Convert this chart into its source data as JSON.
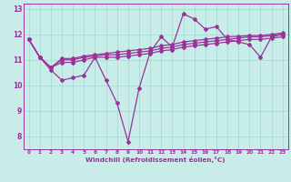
{
  "xlabel": "Windchill (Refroidissement éolien,°C)",
  "xlim": [
    -0.5,
    23.5
  ],
  "ylim": [
    7.5,
    13.2
  ],
  "yticks": [
    8,
    9,
    10,
    11,
    12,
    13
  ],
  "xticks": [
    0,
    1,
    2,
    3,
    4,
    5,
    6,
    7,
    8,
    9,
    10,
    11,
    12,
    13,
    14,
    15,
    16,
    17,
    18,
    19,
    20,
    21,
    22,
    23
  ],
  "bg_color": "#c8ede8",
  "grid_color": "#a0d8d0",
  "line_color": "#993399",
  "line_main": [
    11.8,
    11.1,
    10.6,
    10.2,
    10.3,
    10.4,
    11.1,
    10.2,
    9.3,
    7.8,
    9.9,
    11.3,
    11.9,
    11.5,
    12.8,
    12.6,
    12.2,
    12.3,
    11.8,
    11.7,
    11.6,
    11.1,
    11.9,
    12.0
  ],
  "line_flat1": [
    11.8,
    11.1,
    10.7,
    10.9,
    10.9,
    11.0,
    11.1,
    11.1,
    11.1,
    11.15,
    11.2,
    11.25,
    11.35,
    11.4,
    11.5,
    11.55,
    11.6,
    11.65,
    11.7,
    11.75,
    11.8,
    11.8,
    11.85,
    11.9
  ],
  "line_flat2": [
    11.8,
    11.1,
    10.7,
    11.0,
    11.0,
    11.1,
    11.15,
    11.2,
    11.2,
    11.25,
    11.3,
    11.35,
    11.45,
    11.5,
    11.6,
    11.65,
    11.7,
    11.75,
    11.8,
    11.85,
    11.9,
    11.9,
    11.95,
    12.0
  ],
  "line_flat3": [
    11.8,
    11.1,
    10.7,
    11.05,
    11.05,
    11.15,
    11.2,
    11.25,
    11.3,
    11.35,
    11.4,
    11.45,
    11.55,
    11.6,
    11.7,
    11.75,
    11.8,
    11.85,
    11.9,
    11.92,
    11.95,
    11.95,
    12.0,
    12.05
  ],
  "markersize": 2.0,
  "linewidth": 0.9
}
